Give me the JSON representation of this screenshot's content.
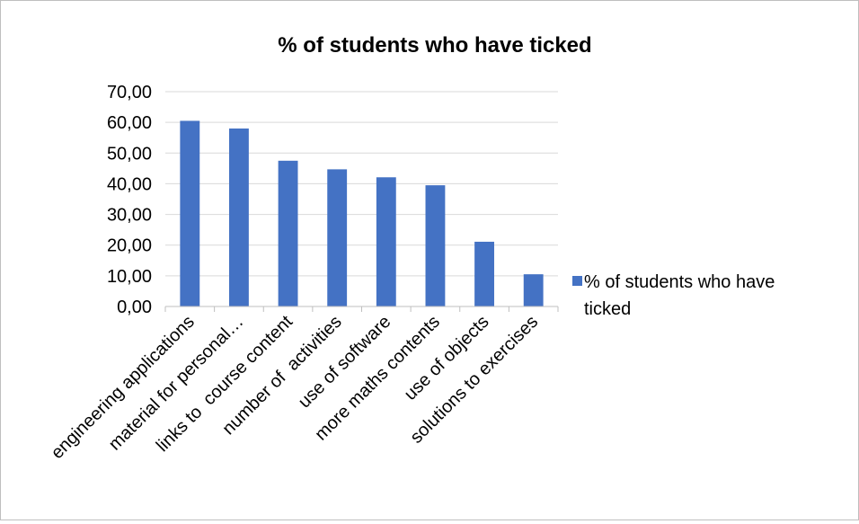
{
  "chart_data": {
    "type": "bar",
    "title": "% of students who have ticked",
    "xlabel": "",
    "ylabel": "",
    "categories": [
      "engineering applications",
      "material for personal…",
      "links to  course content",
      "number of  activities",
      "use of software",
      "more maths contents",
      "use of objects",
      "solutions to exercises"
    ],
    "series": [
      {
        "name": "% of students who have ticked",
        "values": [
          60.5,
          58.0,
          47.5,
          44.7,
          42.1,
          39.5,
          21.1,
          10.5
        ],
        "color": "#4472c4"
      }
    ],
    "ylim": [
      0,
      70
    ],
    "yticks": [
      "0,00",
      "10,00",
      "20,00",
      "30,00",
      "40,00",
      "50,00",
      "60,00",
      "70,00"
    ],
    "grid": true,
    "legend_position": "right"
  },
  "legend": {
    "line1": "% of students who have",
    "line2": "ticked"
  },
  "colors": {
    "bar": "#4472c4",
    "grid": "#d9d9d9",
    "axis": "#bfbfbf",
    "text": "#000000"
  }
}
